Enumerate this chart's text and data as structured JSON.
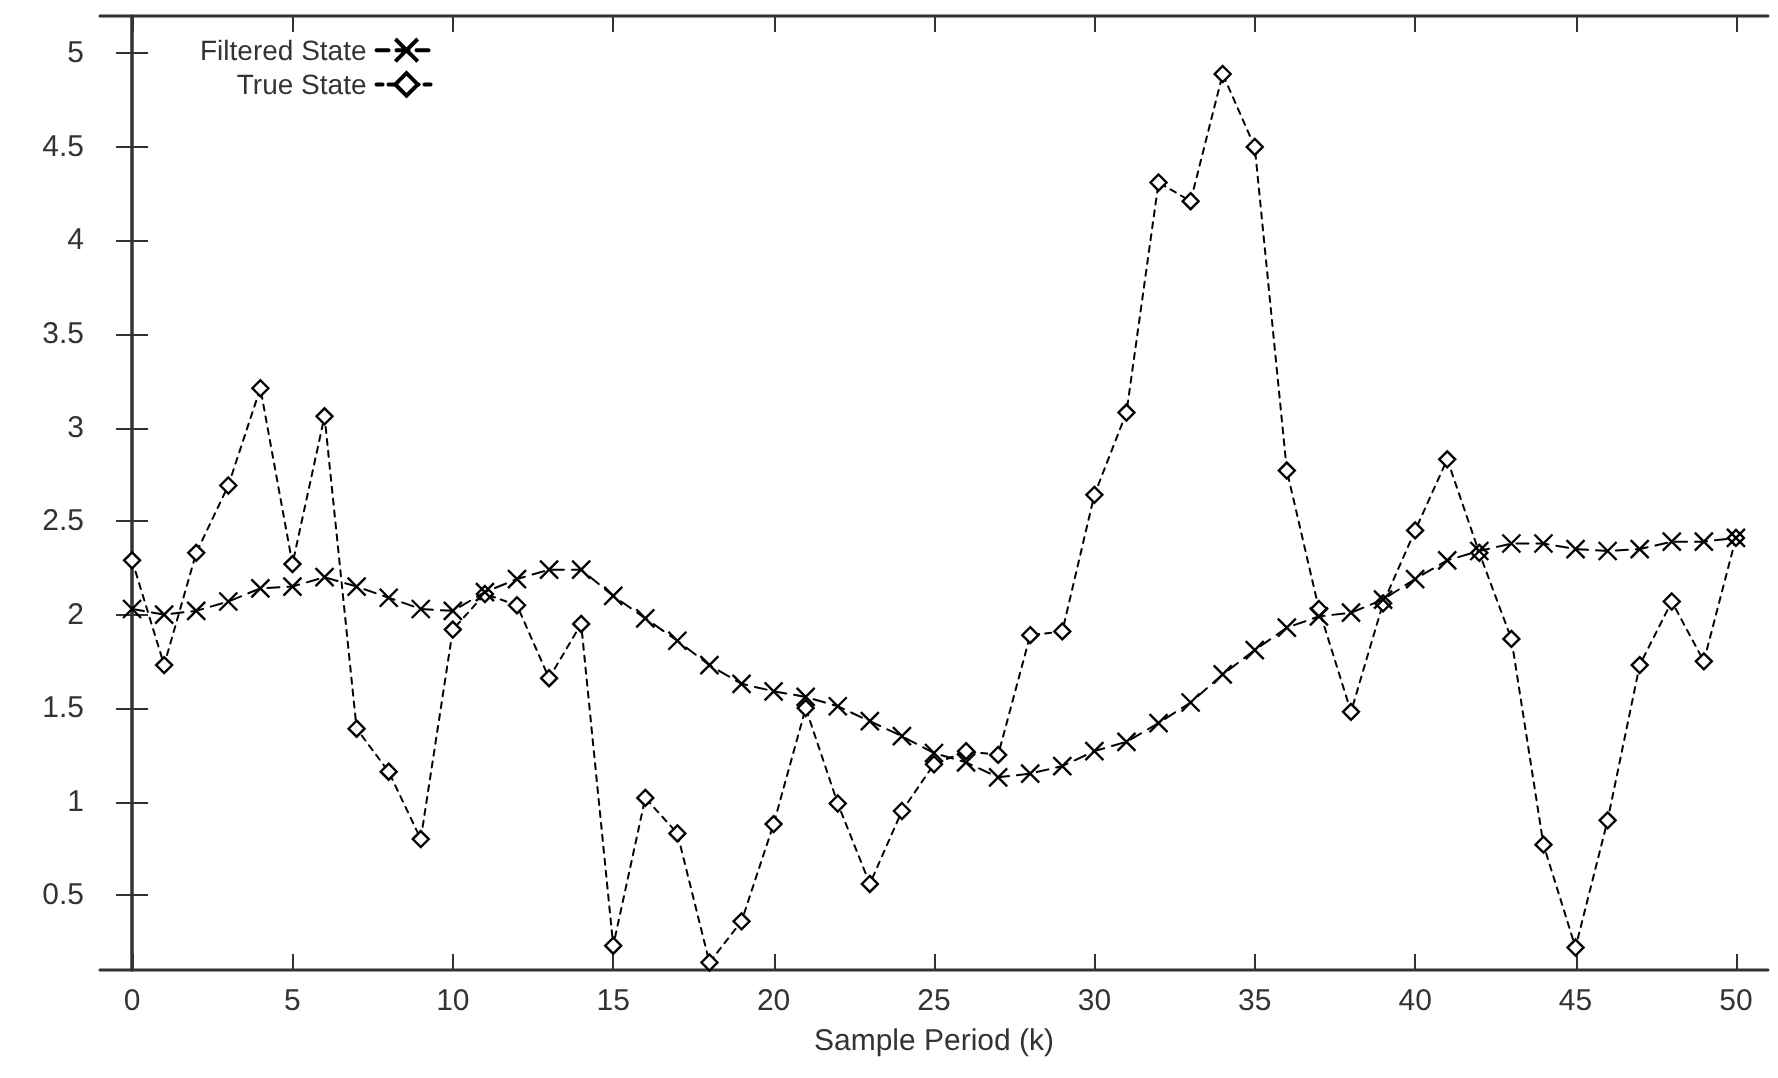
{
  "chart_data": {
    "type": "line",
    "xlabel": "Sample Period (k)",
    "x": [
      0,
      1,
      2,
      3,
      4,
      5,
      6,
      7,
      8,
      9,
      10,
      11,
      12,
      13,
      14,
      15,
      16,
      17,
      18,
      19,
      20,
      21,
      22,
      23,
      24,
      25,
      26,
      27,
      28,
      29,
      30,
      31,
      32,
      33,
      34,
      35,
      36,
      37,
      38,
      39,
      40,
      41,
      42,
      43,
      44,
      45,
      46,
      47,
      48,
      49,
      50
    ],
    "series": [
      {
        "name": "Filtered State",
        "color": "#000000",
        "marker": "cross",
        "line_style": "dashed",
        "values": [
          2.03,
          2.0,
          2.02,
          2.07,
          2.14,
          2.15,
          2.2,
          2.15,
          2.09,
          2.03,
          2.02,
          2.12,
          2.19,
          2.24,
          2.24,
          2.1,
          1.98,
          1.86,
          1.73,
          1.63,
          1.59,
          1.56,
          1.51,
          1.43,
          1.35,
          1.26,
          1.21,
          1.13,
          1.15,
          1.19,
          1.27,
          1.32,
          1.42,
          1.53,
          1.68,
          1.81,
          1.93,
          1.99,
          2.01,
          2.08,
          2.19,
          2.29,
          2.34,
          2.38,
          2.38,
          2.35,
          2.34,
          2.35,
          2.39,
          2.39,
          2.41
        ]
      },
      {
        "name": "True State",
        "color": "#000000",
        "marker": "diamond",
        "line_style": "dotted",
        "values": [
          2.29,
          1.73,
          2.33,
          2.69,
          3.21,
          2.27,
          3.06,
          1.39,
          1.16,
          0.8,
          1.92,
          2.11,
          2.05,
          1.66,
          1.95,
          0.23,
          1.02,
          0.83,
          0.14,
          0.36,
          0.88,
          1.5,
          0.99,
          0.56,
          0.95,
          1.2,
          1.27,
          1.25,
          1.89,
          1.91,
          2.64,
          3.08,
          4.31,
          4.21,
          4.89,
          4.5,
          2.77,
          2.03,
          1.48,
          2.06,
          2.45,
          2.83,
          2.33,
          1.87,
          0.77,
          0.22,
          0.9,
          1.73,
          2.07,
          1.75,
          2.41
        ]
      }
    ],
    "xlim": [
      -1,
      51
    ],
    "xticks": [
      0,
      5,
      10,
      15,
      20,
      25,
      30,
      35,
      40,
      45,
      50
    ],
    "ylim": [
      0.1,
      5.2
    ],
    "yticks": [
      0.5,
      1,
      1.5,
      2,
      2.5,
      3,
      3.5,
      4,
      4.5,
      5
    ],
    "grid": false,
    "legend": "top left"
  }
}
